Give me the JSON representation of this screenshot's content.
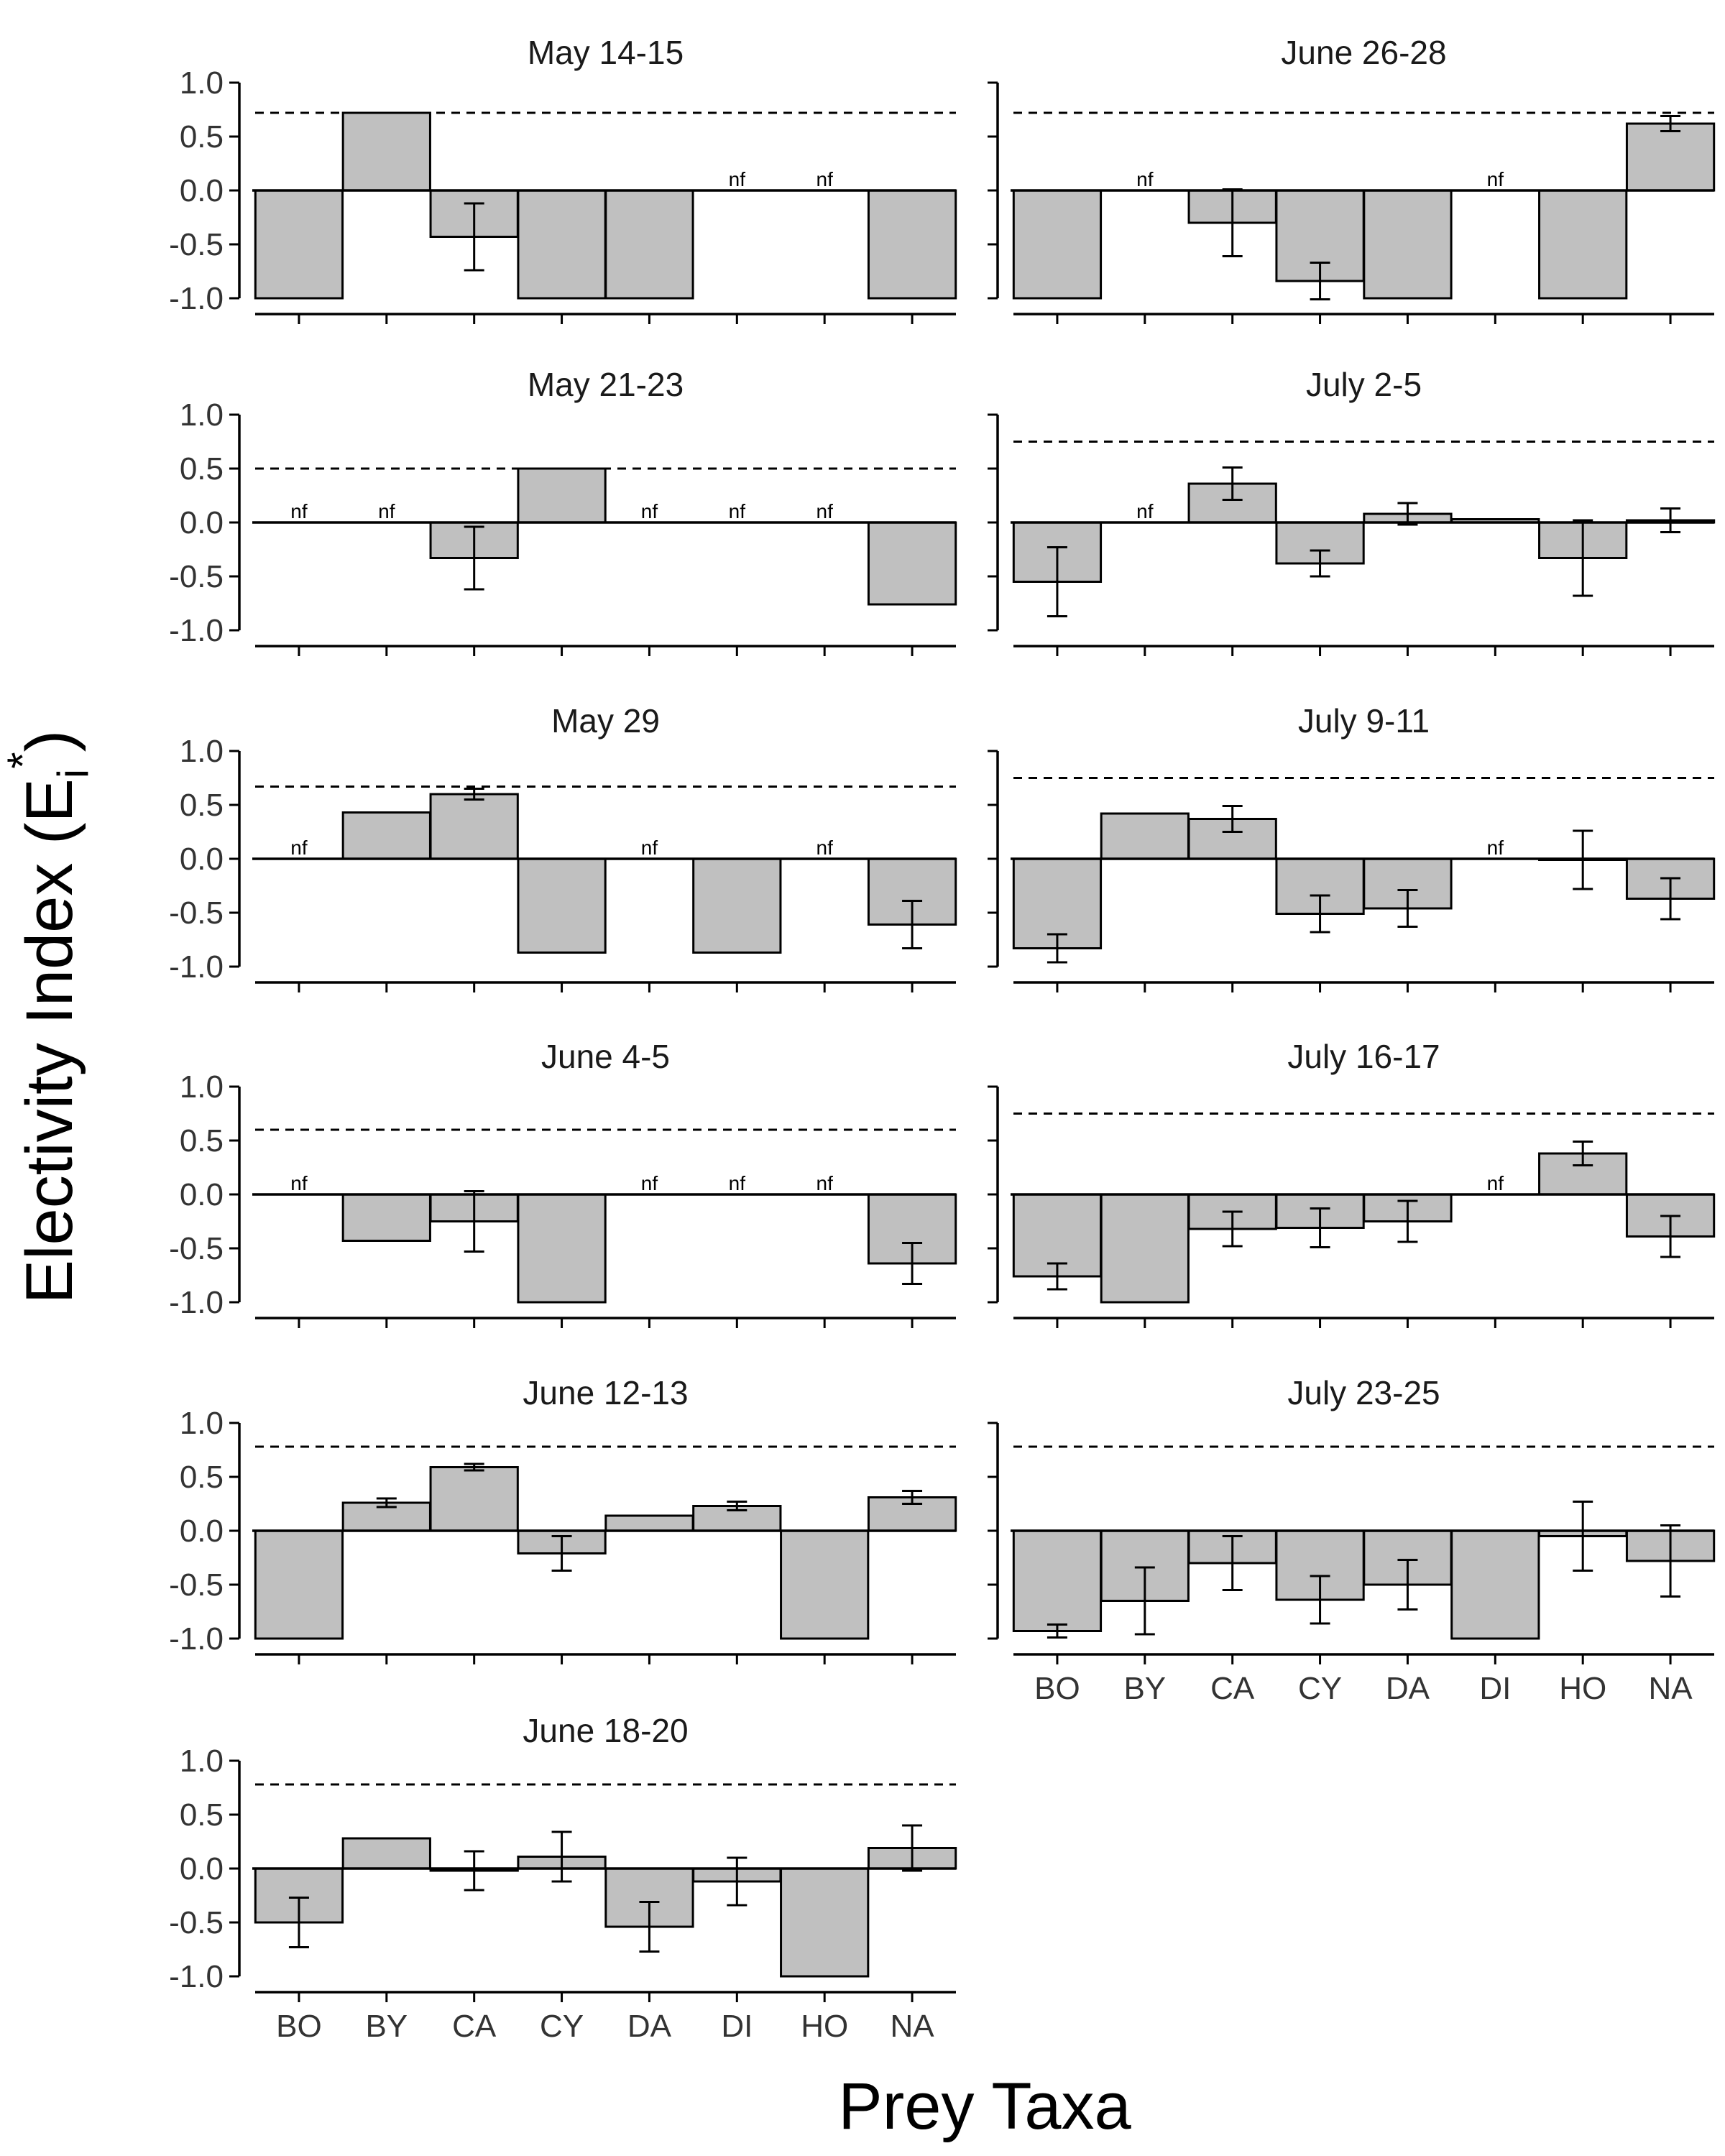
{
  "figure": {
    "ylabel": "Electivity Index (E",
    "ylabel_sub": "i",
    "ylabel_sup": "*",
    "ylabel_close": ")",
    "xlabel": "Prey Taxa"
  },
  "chart_data": {
    "type": "bar",
    "categories": [
      "BO",
      "BY",
      "CA",
      "CY",
      "DA",
      "DI",
      "HO",
      "NA"
    ],
    "ylim": [
      -1.0,
      1.0
    ],
    "yticks": [
      "1.0",
      "0.5",
      "0.0",
      "-0.5",
      "-1.0"
    ],
    "nf_label": "nf",
    "bar_color": "#c0c0c0",
    "grid": false,
    "panels": [
      {
        "title": "May 14-15",
        "col": 0,
        "row": 0,
        "threshold": 0.72,
        "values": [
          -1.0,
          0.72,
          -0.43,
          -1.0,
          -1.0,
          null,
          null,
          -1.0
        ],
        "errors": [
          null,
          null,
          0.31,
          null,
          null,
          null,
          null,
          null
        ],
        "nf": [
          false,
          false,
          false,
          false,
          false,
          true,
          true,
          false
        ]
      },
      {
        "title": "May 21-23",
        "col": 0,
        "row": 1,
        "threshold": 0.5,
        "values": [
          null,
          null,
          -0.33,
          0.5,
          null,
          null,
          null,
          -0.76
        ],
        "errors": [
          null,
          null,
          0.29,
          null,
          null,
          null,
          null,
          null
        ],
        "nf": [
          true,
          true,
          false,
          false,
          true,
          true,
          true,
          false
        ]
      },
      {
        "title": "May 29",
        "col": 0,
        "row": 2,
        "threshold": 0.67,
        "values": [
          null,
          0.43,
          0.6,
          -0.87,
          null,
          -0.87,
          null,
          -0.61
        ],
        "errors": [
          null,
          null,
          0.05,
          null,
          null,
          null,
          null,
          0.22
        ],
        "nf": [
          true,
          false,
          false,
          false,
          true,
          false,
          true,
          false
        ]
      },
      {
        "title": "June 4-5",
        "col": 0,
        "row": 3,
        "threshold": 0.6,
        "values": [
          null,
          -0.43,
          -0.25,
          -1.0,
          null,
          null,
          null,
          -0.64
        ],
        "errors": [
          null,
          null,
          0.28,
          null,
          null,
          null,
          null,
          0.19
        ],
        "nf": [
          true,
          false,
          false,
          false,
          true,
          true,
          true,
          false
        ]
      },
      {
        "title": "June 12-13",
        "col": 0,
        "row": 4,
        "threshold": 0.78,
        "values": [
          -1.0,
          0.26,
          0.59,
          -0.21,
          0.14,
          0.23,
          -1.0,
          0.31
        ],
        "errors": [
          null,
          0.04,
          0.03,
          0.16,
          null,
          0.04,
          null,
          0.06
        ],
        "nf": [
          false,
          false,
          false,
          false,
          false,
          false,
          false,
          false
        ]
      },
      {
        "title": "June 18-20",
        "col": 0,
        "row": 5,
        "threshold": 0.78,
        "values": [
          -0.5,
          0.28,
          -0.02,
          0.11,
          -0.54,
          -0.12,
          -1.0,
          0.19
        ],
        "errors": [
          0.23,
          null,
          0.18,
          0.23,
          0.23,
          0.22,
          null,
          0.21
        ],
        "nf": [
          false,
          false,
          false,
          false,
          false,
          false,
          false,
          false
        ]
      },
      {
        "title": "June 26-28",
        "col": 1,
        "row": 0,
        "threshold": 0.72,
        "values": [
          -1.0,
          null,
          -0.3,
          -0.84,
          -1.0,
          null,
          -1.0,
          0.62
        ],
        "errors": [
          null,
          null,
          0.31,
          0.17,
          null,
          null,
          null,
          0.07
        ],
        "nf": [
          false,
          true,
          false,
          false,
          false,
          true,
          false,
          false
        ]
      },
      {
        "title": "July 2-5",
        "col": 1,
        "row": 1,
        "threshold": 0.75,
        "values": [
          -0.55,
          null,
          0.36,
          -0.38,
          0.08,
          0.03,
          -0.33,
          0.02
        ],
        "errors": [
          0.32,
          null,
          0.15,
          0.12,
          0.1,
          null,
          0.35,
          0.11
        ],
        "nf": [
          false,
          true,
          false,
          false,
          false,
          false,
          false,
          false
        ]
      },
      {
        "title": "July 9-11",
        "col": 1,
        "row": 2,
        "threshold": 0.75,
        "values": [
          -0.83,
          0.42,
          0.37,
          -0.51,
          -0.46,
          null,
          -0.01,
          -0.37
        ],
        "errors": [
          0.13,
          null,
          0.12,
          0.17,
          0.17,
          null,
          0.27,
          0.19
        ],
        "nf": [
          false,
          false,
          false,
          false,
          false,
          true,
          false,
          false
        ]
      },
      {
        "title": "July 16-17",
        "col": 1,
        "row": 3,
        "threshold": 0.75,
        "values": [
          -0.76,
          -1.0,
          -0.32,
          -0.31,
          -0.25,
          null,
          0.38,
          -0.39
        ],
        "errors": [
          0.12,
          null,
          0.16,
          0.18,
          0.19,
          null,
          0.11,
          0.19
        ],
        "nf": [
          false,
          false,
          false,
          false,
          false,
          true,
          false,
          false
        ]
      },
      {
        "title": "July 23-25",
        "col": 1,
        "row": 4,
        "threshold": 0.78,
        "values": [
          -0.93,
          -0.65,
          -0.3,
          -0.64,
          -0.5,
          -1.0,
          -0.05,
          -0.28
        ],
        "errors": [
          0.06,
          0.31,
          0.25,
          0.22,
          0.23,
          null,
          0.32,
          0.33
        ],
        "nf": [
          false,
          false,
          false,
          false,
          false,
          false,
          false,
          false
        ]
      }
    ]
  }
}
